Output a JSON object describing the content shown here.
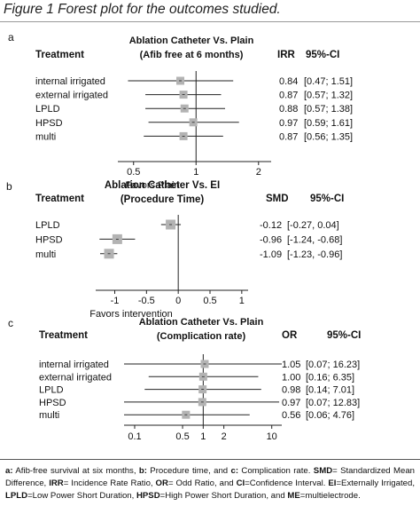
{
  "figure_title": "Figure 1 Forest plot for the outcomes studied.",
  "chart_data": [
    {
      "type": "forest",
      "panel_label": "a",
      "title_lines": [
        "Ablation Catheter Vs. Plain",
        "(Afib free at 6 months)"
      ],
      "column_headers": {
        "treatment": "Treatment",
        "effect": "IRR",
        "ci": "95%-CI"
      },
      "scale": "log",
      "xlim": [
        0.42,
        2.3
      ],
      "xticks": [
        0.5,
        1,
        2
      ],
      "tick_labels": [
        "0.5",
        "1",
        "2"
      ],
      "reference_line": 1,
      "xlabel": "Favors Plain",
      "rows": [
        {
          "label": "internal irrigated",
          "estimate": 0.84,
          "lower": 0.47,
          "upper": 1.51,
          "estimate_text": "0.84",
          "ci_text": "[0.47; 1.51]"
        },
        {
          "label": "external irrigated",
          "estimate": 0.87,
          "lower": 0.57,
          "upper": 1.32,
          "estimate_text": "0.87",
          "ci_text": "[0.57; 1.32]"
        },
        {
          "label": "LPLD",
          "estimate": 0.88,
          "lower": 0.57,
          "upper": 1.38,
          "estimate_text": "0.88",
          "ci_text": "[0.57; 1.38]"
        },
        {
          "label": "HPSD",
          "estimate": 0.97,
          "lower": 0.59,
          "upper": 1.61,
          "estimate_text": "0.97",
          "ci_text": "[0.59; 1.61]"
        },
        {
          "label": "multi",
          "estimate": 0.87,
          "lower": 0.56,
          "upper": 1.35,
          "estimate_text": "0.87",
          "ci_text": "[0.56; 1.35]"
        }
      ]
    },
    {
      "type": "forest",
      "panel_label": "b",
      "title_lines": [
        "Ablation Catheter Vs. EI",
        "(Procedure Time)"
      ],
      "column_headers": {
        "treatment": "Treatment",
        "effect": "SMD",
        "ci": "95%-CI"
      },
      "scale": "linear",
      "xlim": [
        -1.3,
        1.1
      ],
      "xticks": [
        -1,
        -0.5,
        0,
        0.5,
        1
      ],
      "tick_labels": [
        "-1",
        "-0.5",
        "0",
        "0.5",
        "1"
      ],
      "reference_line": 0,
      "xlabel": "Favors intervention",
      "rows": [
        {
          "label": "LPLD",
          "estimate": -0.12,
          "lower": -0.27,
          "upper": 0.04,
          "estimate_text": "-0.12",
          "ci_text": "[-0.27,  0.04]"
        },
        {
          "label": "HPSD",
          "estimate": -0.96,
          "lower": -1.24,
          "upper": -0.68,
          "estimate_text": "-0.96",
          "ci_text": "[-1.24, -0.68]"
        },
        {
          "label": "multi",
          "estimate": -1.09,
          "lower": -1.23,
          "upper": -0.96,
          "estimate_text": "-1.09",
          "ci_text": "[-1.23, -0.96]"
        }
      ]
    },
    {
      "type": "forest",
      "panel_label": "c",
      "title_lines": [
        "Ablation Catheter Vs. Plain",
        "(Complication rate)"
      ],
      "column_headers": {
        "treatment": "Treatment",
        "effect": "OR",
        "ci": "95%-CI"
      },
      "scale": "log",
      "xlim": [
        0.07,
        14
      ],
      "xticks": [
        0.1,
        0.5,
        1,
        2,
        10
      ],
      "tick_labels": [
        "0.1",
        "0.5",
        "1",
        "2",
        "10"
      ],
      "reference_line": 1,
      "xlabel": "",
      "rows": [
        {
          "label": "internal irrigated",
          "estimate": 1.05,
          "lower": 0.07,
          "upper": 16.23,
          "estimate_text": "1.05",
          "ci_text": "[0.07; 16.23]"
        },
        {
          "label": "external irrigated",
          "estimate": 1.0,
          "lower": 0.16,
          "upper": 6.35,
          "estimate_text": "1.00",
          "ci_text": "[0.16;  6.35]"
        },
        {
          "label": "LPLD",
          "estimate": 0.98,
          "lower": 0.14,
          "upper": 7.01,
          "estimate_text": "0.98",
          "ci_text": "[0.14;  7.01]"
        },
        {
          "label": "HPSD",
          "estimate": 0.97,
          "lower": 0.07,
          "upper": 12.83,
          "estimate_text": "0.97",
          "ci_text": "[0.07; 12.83]"
        },
        {
          "label": "multi",
          "estimate": 0.56,
          "lower": 0.06,
          "upper": 4.76,
          "estimate_text": "0.56",
          "ci_text": "[0.06;  4.76]"
        }
      ]
    }
  ],
  "caption": {
    "segments": [
      {
        "text": "a:",
        "bold": true
      },
      {
        "text": " Afib-free survival at six months, ",
        "bold": false
      },
      {
        "text": "b:",
        "bold": true
      },
      {
        "text": " Procedure time, and ",
        "bold": false
      },
      {
        "text": "c:",
        "bold": true
      },
      {
        "text": " Complication rate. ",
        "bold": false
      },
      {
        "text": "SMD",
        "bold": true
      },
      {
        "text": "= Standardized Mean Difference, ",
        "bold": false
      },
      {
        "text": "IRR",
        "bold": true
      },
      {
        "text": "= Incidence Rate Ratio, ",
        "bold": false
      },
      {
        "text": "OR",
        "bold": true
      },
      {
        "text": "= Odd Ratio, and ",
        "bold": false
      },
      {
        "text": "CI",
        "bold": true
      },
      {
        "text": "=Confidence Interval. ",
        "bold": false
      },
      {
        "text": "EI",
        "bold": true
      },
      {
        "text": "=Externally Irrigated, ",
        "bold": false
      },
      {
        "text": "LPLD",
        "bold": true
      },
      {
        "text": "=Low Power Short Duration, ",
        "bold": false
      },
      {
        "text": "HPSD",
        "bold": true
      },
      {
        "text": "=High Power Short Duration, and ",
        "bold": false
      },
      {
        "text": "ME",
        "bold": true
      },
      {
        "text": "=multielectrode.",
        "bold": false
      }
    ]
  },
  "colors": {
    "box": "#b3b3b3",
    "line": "#222222",
    "text": "#111111"
  }
}
